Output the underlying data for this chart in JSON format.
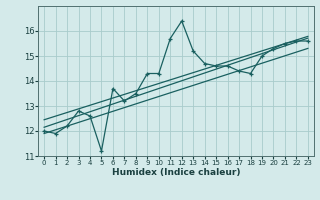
{
  "xlabel": "Humidex (Indice chaleur)",
  "bg_color": "#d4eaea",
  "grid_color": "#a8cccc",
  "line_color": "#1a6060",
  "x_data": [
    0,
    1,
    2,
    3,
    4,
    5,
    6,
    7,
    8,
    9,
    10,
    11,
    12,
    13,
    14,
    15,
    16,
    17,
    18,
    19,
    20,
    21,
    22,
    23
  ],
  "y_data": [
    12.0,
    11.9,
    12.2,
    12.8,
    12.6,
    11.2,
    13.7,
    13.2,
    13.5,
    14.3,
    14.3,
    15.7,
    16.4,
    15.2,
    14.7,
    14.6,
    14.6,
    14.4,
    14.3,
    15.0,
    15.3,
    15.5,
    15.6,
    15.6
  ],
  "ylim": [
    11.0,
    17.0
  ],
  "xlim": [
    -0.5,
    23.5
  ],
  "yticks": [
    11,
    12,
    13,
    14,
    15,
    16
  ],
  "xticks": [
    0,
    1,
    2,
    3,
    4,
    5,
    6,
    7,
    8,
    9,
    10,
    11,
    12,
    13,
    14,
    15,
    16,
    17,
    18,
    19,
    20,
    21,
    22,
    23
  ],
  "reg_lines": [
    {
      "slope": 0.148,
      "intercept": 11.9
    },
    {
      "slope": 0.155,
      "intercept": 12.15
    },
    {
      "slope": 0.145,
      "intercept": 12.45
    }
  ]
}
